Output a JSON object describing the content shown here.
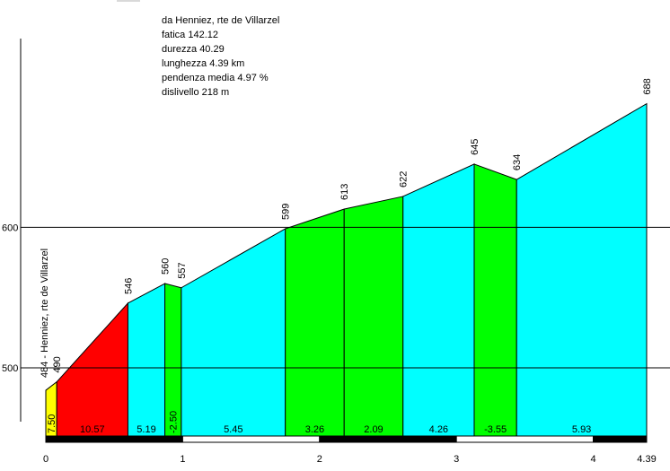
{
  "info": {
    "title": "da Henniez, rte de Villarzel",
    "fatica": "fatica 142.12",
    "durezza": "durezza 40.29",
    "lunghezza": "lunghezza 4.39 km",
    "pendenza": "pendenza media 4.97 %",
    "dislivello": "dislivello 218 m"
  },
  "chart_data": {
    "type": "area",
    "title": "da Henniez, rte de Villarzel",
    "xlabel": "",
    "ylabel": "",
    "xlim": [
      0,
      4.39
    ],
    "x_ticks": [
      "0",
      "1",
      "2",
      "3",
      "4",
      "4.39"
    ],
    "y_ticks": [
      "500",
      "600"
    ],
    "start_label": "484 - Henniez, rte de Villarzel",
    "points": [
      {
        "x": 0,
        "y": 484,
        "label": ""
      },
      {
        "x": 0.08,
        "y": 490,
        "label": "490"
      },
      {
        "x": 0.6,
        "y": 546,
        "label": "546"
      },
      {
        "x": 0.87,
        "y": 560,
        "label": "560"
      },
      {
        "x": 0.99,
        "y": 557,
        "label": "557"
      },
      {
        "x": 1.75,
        "y": 599,
        "label": "599"
      },
      {
        "x": 2.18,
        "y": 613,
        "label": "613"
      },
      {
        "x": 2.61,
        "y": 622,
        "label": "622"
      },
      {
        "x": 3.13,
        "y": 645,
        "label": "645"
      },
      {
        "x": 3.44,
        "y": 634,
        "label": "634"
      },
      {
        "x": 4.39,
        "y": 688,
        "label": "688"
      }
    ],
    "segments": [
      {
        "gradient": "7.50",
        "color": "#ffff00"
      },
      {
        "gradient": "10.57",
        "color": "#ff0000"
      },
      {
        "gradient": "5.19",
        "color": "#00ffff"
      },
      {
        "gradient": "-2.50",
        "color": "#00ff00"
      },
      {
        "gradient": "5.45",
        "color": "#00ffff"
      },
      {
        "gradient": "3.26",
        "color": "#00ff00"
      },
      {
        "gradient": "2.09",
        "color": "#00ff00"
      },
      {
        "gradient": "4.26",
        "color": "#00ffff"
      },
      {
        "gradient": "-3.55",
        "color": "#00ff00"
      },
      {
        "gradient": "5.93",
        "color": "#00ffff"
      }
    ]
  }
}
